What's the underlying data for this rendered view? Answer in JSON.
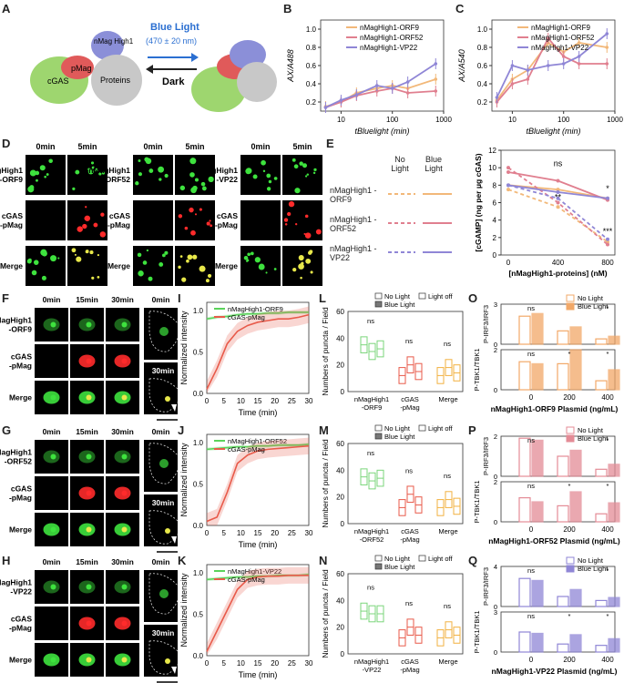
{
  "panel_letters": [
    "A",
    "B",
    "C",
    "D",
    "E",
    "F",
    "G",
    "H",
    "I",
    "J",
    "K",
    "L",
    "M",
    "N",
    "O",
    "P",
    "Q"
  ],
  "A": {
    "light_label": "Blue Light",
    "wavelength": "(470 ± 20 nm)",
    "dark_label": "Dark",
    "nmag": "nMag High1",
    "pmag": "pMag",
    "cgas": "cGAS",
    "proteins": "Proteins",
    "colors": {
      "nmag": "#8b8fd8",
      "pmag": "#e05a5a",
      "cgas": "#9ed66f",
      "protein": "#c8c8c8",
      "arrow": "#2b6fd1"
    }
  },
  "legend3": [
    "nMagHigh1-ORF9",
    "nMagHigh1-ORF52",
    "nMagHigh1-VP22"
  ],
  "series_colors": {
    "orf9": "#f2b879",
    "orf52": "#e07f8f",
    "vp22": "#8f86d6"
  },
  "B": {
    "ylabel": "AX/A488",
    "xlabel": "tBluelight (min)",
    "yticks": [
      "0.2",
      "0.4",
      "0.6",
      "0.8",
      "1.0"
    ],
    "xticks": [
      "10",
      "100",
      "1000"
    ]
  },
  "C": {
    "ylabel": "AX/A540",
    "xlabel": "tBluelight (min)",
    "yticks": [
      "0.2",
      "0.4",
      "0.6",
      "0.8",
      "1.0"
    ],
    "xticks": [
      "10",
      "100",
      "1000"
    ]
  },
  "chart_data": [
    {
      "type": "line",
      "panel": "B",
      "xscale": "log",
      "x": [
        5,
        10,
        20,
        50,
        100,
        200,
        700
      ],
      "ylim": [
        0.1,
        1.1
      ],
      "series": [
        {
          "name": "nMagHigh1-ORF9",
          "values": [
            0.15,
            0.2,
            0.3,
            0.35,
            0.38,
            0.35,
            0.45
          ]
        },
        {
          "name": "nMagHigh1-ORF52",
          "values": [
            0.14,
            0.2,
            0.27,
            0.32,
            0.35,
            0.3,
            0.32
          ]
        },
        {
          "name": "nMagHigh1-VP22",
          "values": [
            0.14,
            0.22,
            0.28,
            0.38,
            0.35,
            0.42,
            0.62
          ]
        }
      ]
    },
    {
      "type": "line",
      "panel": "C",
      "xscale": "log",
      "x": [
        5,
        10,
        20,
        50,
        100,
        200,
        700
      ],
      "ylim": [
        0.1,
        1.1
      ],
      "series": [
        {
          "name": "nMagHigh1-ORF9",
          "values": [
            0.22,
            0.45,
            0.55,
            0.85,
            0.75,
            0.85,
            0.8
          ]
        },
        {
          "name": "nMagHigh1-ORF52",
          "values": [
            0.2,
            0.4,
            0.45,
            0.9,
            0.7,
            0.62,
            0.62
          ]
        },
        {
          "name": "nMagHigh1-VP22",
          "values": [
            0.25,
            0.6,
            0.55,
            0.6,
            0.62,
            0.7,
            0.95
          ]
        }
      ]
    },
    {
      "type": "line",
      "panel": "E",
      "x": [
        0,
        400,
        800
      ],
      "xticks": [
        "0",
        "400",
        "800"
      ],
      "ylabel": "[cGAMP] (ng per μg cGAS)",
      "xlabel": "[nMagHigh1-proteins] (nM)",
      "yticks": [
        "0",
        "2",
        "4",
        "6",
        "8",
        "10",
        "12"
      ],
      "ylim": [
        0,
        12
      ],
      "significance": [
        "ns",
        "**",
        "*",
        "***"
      ],
      "series": [
        {
          "name": "ORF9 No Light",
          "values": [
            7.5,
            5.5,
            1.5
          ]
        },
        {
          "name": "ORF9 Blue Light",
          "values": [
            8.0,
            7.5,
            6.5
          ]
        },
        {
          "name": "ORF52 No Light",
          "values": [
            10.0,
            6.0,
            1.2
          ]
        },
        {
          "name": "ORF52 Blue Light",
          "values": [
            9.5,
            8.5,
            6.3
          ]
        },
        {
          "name": "VP22 No Light",
          "values": [
            8.0,
            6.5,
            1.8
          ]
        },
        {
          "name": "VP22 Blue Light",
          "values": [
            8.0,
            7.2,
            6.5
          ]
        }
      ]
    },
    {
      "type": "line",
      "panel": "I",
      "x": [
        0,
        3,
        6,
        9,
        12,
        15,
        18,
        21,
        24,
        27,
        30
      ],
      "ylim": [
        0,
        1.1
      ],
      "series": [
        {
          "name": "nMagHigh1-ORF9",
          "values": [
            0.9,
            0.92,
            0.93,
            0.95,
            0.96,
            0.96,
            0.97,
            0.97,
            0.98,
            0.98,
            0.98
          ]
        },
        {
          "name": "cGAS-pMag",
          "values": [
            0.05,
            0.3,
            0.6,
            0.75,
            0.82,
            0.86,
            0.88,
            0.9,
            0.9,
            0.92,
            0.95
          ]
        }
      ]
    },
    {
      "type": "line",
      "panel": "J",
      "x": [
        0,
        3,
        6,
        9,
        12,
        15,
        18,
        21,
        24,
        27,
        30
      ],
      "ylim": [
        0,
        1.1
      ],
      "series": [
        {
          "name": "nMagHigh1-ORF52",
          "values": [
            0.92,
            0.93,
            0.94,
            0.95,
            0.95,
            0.96,
            0.96,
            0.97,
            0.97,
            0.97,
            0.98
          ]
        },
        {
          "name": "cGAS-pMag",
          "values": [
            0.05,
            0.1,
            0.4,
            0.75,
            0.85,
            0.9,
            0.92,
            0.93,
            0.94,
            0.95,
            0.96
          ]
        }
      ]
    },
    {
      "type": "line",
      "panel": "K",
      "x": [
        0,
        3,
        6,
        9,
        12,
        15,
        18,
        21,
        24,
        27,
        30
      ],
      "ylim": [
        0,
        1.1
      ],
      "series": [
        {
          "name": "nMagHigh1-VP22",
          "values": [
            0.92,
            0.93,
            0.94,
            0.95,
            0.95,
            0.96,
            0.96,
            0.97,
            0.97,
            0.97,
            0.98
          ]
        },
        {
          "name": "cGAS-pMag",
          "values": [
            0.05,
            0.3,
            0.55,
            0.8,
            0.92,
            0.95,
            0.96,
            0.96,
            0.97,
            0.97,
            0.97
          ]
        }
      ]
    },
    {
      "type": "bar",
      "panel": "L",
      "categories": [
        "nMagHigh1-ORF9",
        "cGAS-pMag",
        "Merge"
      ],
      "ylim": [
        0,
        60
      ],
      "series": [
        {
          "name": "No Light",
          "values": [
            35,
            12,
            12
          ]
        },
        {
          "name": "Blue Light",
          "values": [
            30,
            20,
            18
          ]
        },
        {
          "name": "Light off",
          "values": [
            32,
            15,
            14
          ]
        }
      ]
    },
    {
      "type": "bar",
      "panel": "M",
      "categories": [
        "nMagHigh1-ORF52",
        "cGAS-pMag",
        "Merge"
      ],
      "ylim": [
        0,
        60
      ],
      "series": [
        {
          "name": "No Light",
          "values": [
            35,
            12,
            12
          ]
        },
        {
          "name": "Blue Light",
          "values": [
            32,
            22,
            18
          ]
        },
        {
          "name": "Light off",
          "values": [
            34,
            14,
            13
          ]
        }
      ]
    },
    {
      "type": "bar",
      "panel": "N",
      "categories": [
        "nMagHigh1-VP22",
        "cGAS-pMag",
        "Merge"
      ],
      "ylim": [
        0,
        60
      ],
      "series": [
        {
          "name": "No Light",
          "values": [
            32,
            12,
            12
          ]
        },
        {
          "name": "Blue Light",
          "values": [
            30,
            20,
            18
          ]
        },
        {
          "name": "Light off",
          "values": [
            30,
            14,
            14
          ]
        }
      ]
    },
    {
      "type": "bar",
      "panel": "O",
      "categories": [
        "0",
        "200",
        "400"
      ],
      "top_ylim": [
        0,
        3
      ],
      "bottom_ylim": [
        0,
        2
      ],
      "top_series": [
        {
          "name": "No Light",
          "values": [
            2.1,
            1.0,
            0.4
          ]
        },
        {
          "name": "Blue Light",
          "values": [
            2.3,
            1.3,
            0.6
          ]
        }
      ],
      "bottom_series": [
        {
          "name": "No Light",
          "values": [
            1.4,
            1.3,
            0.45
          ]
        },
        {
          "name": "Blue Light",
          "values": [
            1.3,
            2.0,
            1.0
          ]
        }
      ]
    },
    {
      "type": "bar",
      "panel": "P",
      "categories": [
        "0",
        "200",
        "400"
      ],
      "top_ylim": [
        0,
        2
      ],
      "bottom_ylim": [
        0,
        2
      ],
      "top_series": [
        {
          "name": "No Light",
          "values": [
            1.9,
            1.0,
            0.35
          ]
        },
        {
          "name": "Blue Light",
          "values": [
            1.8,
            1.3,
            0.6
          ]
        }
      ],
      "bottom_series": [
        {
          "name": "No Light",
          "values": [
            1.2,
            0.8,
            0.4
          ]
        },
        {
          "name": "Blue Light",
          "values": [
            1.0,
            1.5,
            0.95
          ]
        }
      ]
    },
    {
      "type": "bar",
      "panel": "Q",
      "categories": [
        "0",
        "200",
        "400"
      ],
      "top_ylim": [
        0,
        4
      ],
      "bottom_ylim": [
        0,
        3
      ],
      "top_series": [
        {
          "name": "No Light",
          "values": [
            2.8,
            1.0,
            0.6
          ]
        },
        {
          "name": "Blue Light",
          "values": [
            2.6,
            1.7,
            0.9
          ]
        }
      ],
      "bottom_series": [
        {
          "name": "No Light",
          "values": [
            1.5,
            0.6,
            0.5
          ]
        },
        {
          "name": "Blue Light",
          "values": [
            1.4,
            1.3,
            1.0
          ]
        }
      ]
    }
  ],
  "D": {
    "times": [
      "0min",
      "5min"
    ],
    "rows": [
      "cGAS -pMag",
      "Merge"
    ],
    "groups": [
      "nMagHigh1 -ORF9",
      "nMagHigh1 -ORF52",
      "nMagHigh1 -VP22"
    ]
  },
  "E_table": {
    "headers": [
      "No Light",
      "Blue Light"
    ],
    "rows": [
      "nMagHigh1 -ORF9",
      "nMagHigh1 -ORF52",
      "nMagHigh1 -VP22"
    ]
  },
  "FGH": {
    "times": [
      "0min",
      "15min",
      "30min",
      "0min"
    ],
    "inset_time": "30min",
    "rows_F": [
      "nMagHigh1 -ORF9",
      "cGAS -pMag",
      "Merge"
    ],
    "rows_G": [
      "nMagHigh1 -ORF52",
      "cGAS -pMag",
      "Merge"
    ],
    "rows_H": [
      "nMagHigh1 -VP22",
      "cGAS -pMag",
      "Merge"
    ]
  },
  "IJK": {
    "ylabel": "Normalized intensity",
    "xlabel": "Time (min)",
    "yticks": [
      "0.0",
      "0.5",
      "1.0"
    ],
    "xticks": [
      "0",
      "5",
      "10",
      "15",
      "20",
      "25",
      "30"
    ]
  },
  "LMN": {
    "ylabel": "Numbers of puncta / Field",
    "legend": [
      "No Light",
      "Light off",
      "Blue Light"
    ],
    "yticks": [
      "0",
      "20",
      "40",
      "60"
    ],
    "xcats_L": [
      "nMagHigh1 -ORF9",
      "cGAS -pMag",
      "Merge"
    ],
    "xcats_M": [
      "nMagHigh1 -ORF52",
      "cGAS -pMag",
      "Merge"
    ],
    "xcats_N": [
      "nMagHigh1 -VP22",
      "cGAS -pMag",
      "Merge"
    ],
    "sig": [
      "ns",
      "ns",
      "ns",
      "**",
      "ns",
      "ns"
    ]
  },
  "OPQ": {
    "ylabel_top": "P-IRF3/IRF3",
    "ylabel_bottom": "P-TBK1/TBK1",
    "legend": [
      "No Light",
      "Blue Light"
    ],
    "xlabel_O": "nMagHigh1-ORF9 Plasmid (ng/mL)",
    "xlabel_P": "nMagHigh1-ORF52 Plasmid (ng/mL)",
    "xlabel_Q": "nMagHigh1-VP22 Plasmid (ng/mL)",
    "xticks": [
      "0",
      "200",
      "400"
    ],
    "sig": [
      "ns",
      "*",
      "*"
    ],
    "colors": {
      "O": "#f2a868",
      "P": "#e48b96",
      "Q": "#8f86d6"
    }
  }
}
